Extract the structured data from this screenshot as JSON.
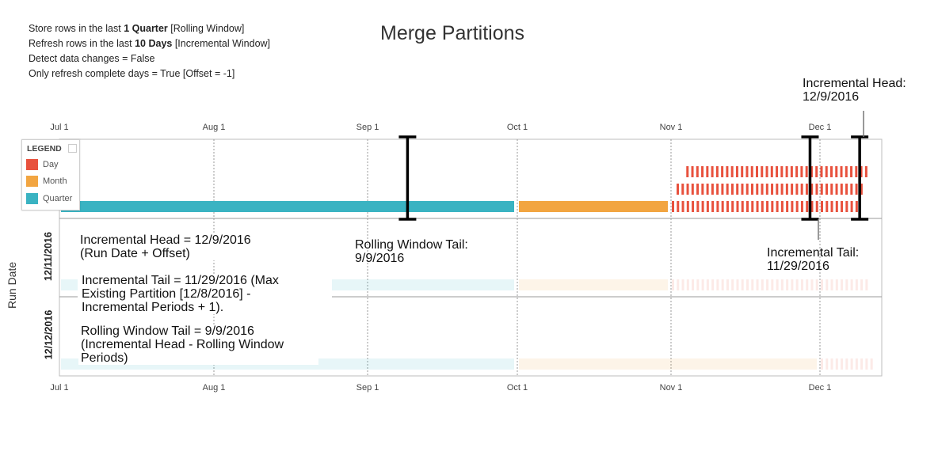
{
  "info": {
    "line1_pre": "Store rows in the last ",
    "line1_bold": "1 Quarter",
    "line1_post": " [Rolling Window]",
    "line2_pre": "Refresh rows in the last ",
    "line2_bold": "10 Days",
    "line2_post": " [Incremental Window]",
    "line3": "Detect data changes = False",
    "line4": "Only refresh complete days = True [Offset = -1]"
  },
  "title": "Merge Partitions",
  "callouts": {
    "incremental_head_top_1": "Incremental Head:",
    "incremental_head_top_2": "12/9/2016",
    "rolling_tail_1": "Rolling Window Tail:",
    "rolling_tail_2": "9/9/2016",
    "incremental_tail_1": "Incremental Tail:",
    "incremental_tail_2": "11/29/2016"
  },
  "notes": {
    "head_1": "Incremental Head = 12/9/2016",
    "head_2": "(Run Date + Offset)",
    "tail_1": "Incremental Tail = 11/29/2016 (Max",
    "tail_2": "Existing Partition [12/8/2016] -",
    "tail_3": "Incremental Periods + 1).",
    "rolling_1": "Rolling Window Tail = 9/9/2016",
    "rolling_2": "(Incremental Head - Rolling Window",
    "rolling_3": "Periods)"
  },
  "legend": {
    "title": "LEGEND",
    "items": [
      {
        "label": "Day",
        "color": "#e8513d"
      },
      {
        "label": "Month",
        "color": "#f2a541"
      },
      {
        "label": "Quarter",
        "color": "#3ab3c2"
      }
    ]
  },
  "chart_data": {
    "type": "gantt",
    "ylabel": "Run Date",
    "x_ticks": [
      "Jul 1",
      "Aug 1",
      "Sep 1",
      "Oct 1",
      "Nov 1",
      "Dec 1"
    ],
    "rows": [
      {
        "label": "",
        "partitions": [
          {
            "level": "Quarter",
            "start": "2016-07-01",
            "end": "2016-09-30"
          },
          {
            "level": "Month",
            "start": "2016-10-01",
            "end": "2016-10-31"
          },
          {
            "level": "Day",
            "start": "2016-11-01",
            "end": "2016-12-08",
            "stack": [
              0,
              1,
              2
            ]
          }
        ],
        "markers": [
          "2016-09-09",
          "2016-11-29",
          "2016-12-09"
        ]
      },
      {
        "label": "12/11/2016",
        "partitions": [
          {
            "level": "Quarter",
            "start": "2016-07-01",
            "end": "2016-09-30"
          },
          {
            "level": "Month",
            "start": "2016-10-01",
            "end": "2016-10-31"
          },
          {
            "level": "Day",
            "start": "2016-11-01",
            "end": "2016-12-10"
          }
        ]
      },
      {
        "label": "12/12/2016",
        "partitions": [
          {
            "level": "Quarter",
            "start": "2016-07-01",
            "end": "2016-09-30"
          },
          {
            "level": "Month",
            "start": "2016-10-01",
            "end": "2016-11-30"
          },
          {
            "level": "Day",
            "start": "2016-12-01",
            "end": "2016-12-11"
          }
        ]
      }
    ]
  }
}
